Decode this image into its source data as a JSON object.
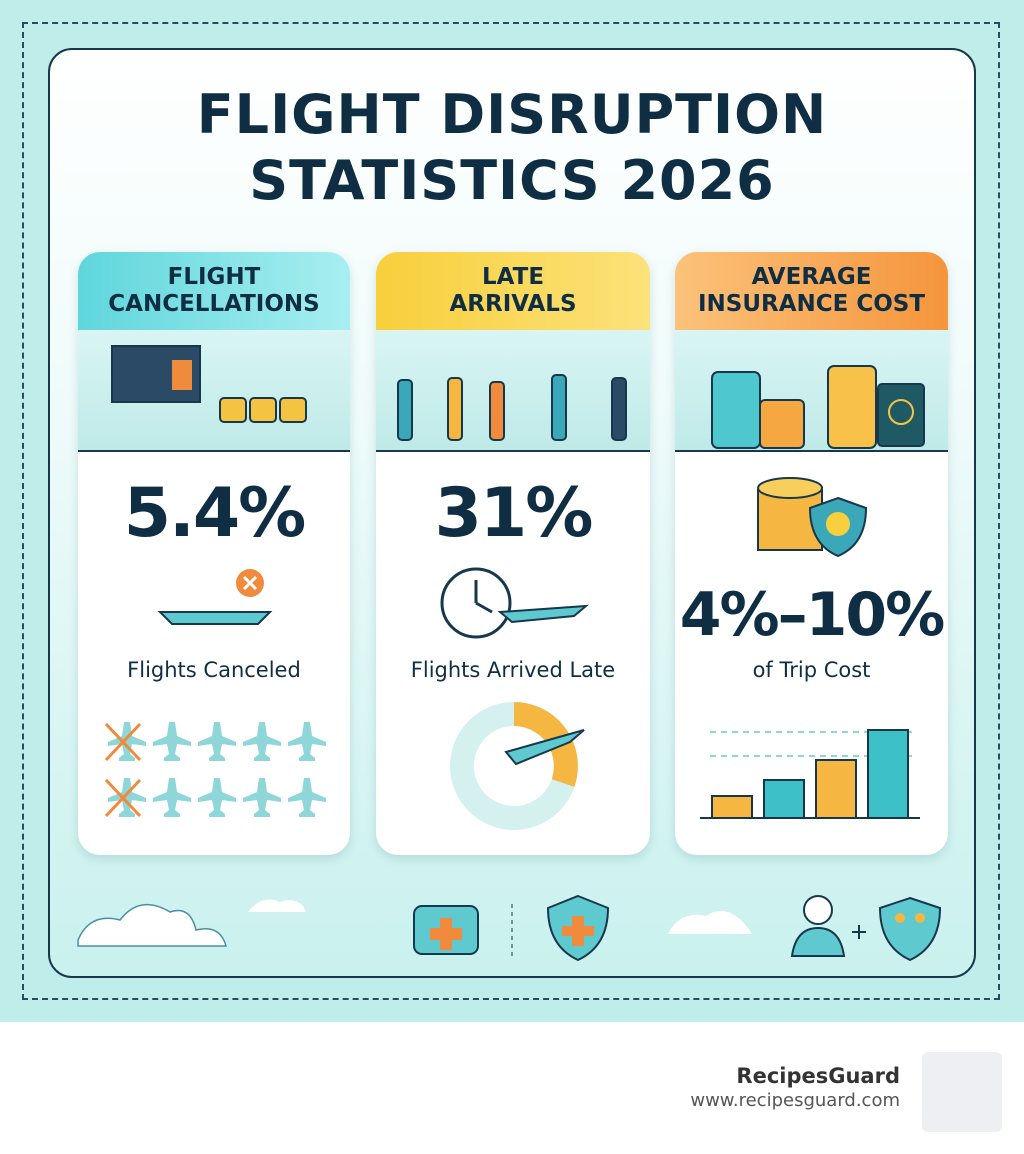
{
  "header": {
    "title": "FLIGHT DISRUPTION STATISTICS 2026"
  },
  "cards": [
    {
      "title": "FLIGHT CANCELLATIONS",
      "stat": "5.4%",
      "caption": "Flights Canceled"
    },
    {
      "title": "LATE ARRIVALS",
      "stat": "31%",
      "caption": "Flights Arrived Late"
    },
    {
      "title": "AVERAGE INSURANCE COST",
      "stat": "4%–10%",
      "caption": "of Trip Cost"
    }
  ],
  "footer": {
    "brand": "RecipesGuard",
    "url": "www.recipesguard.com"
  }
}
